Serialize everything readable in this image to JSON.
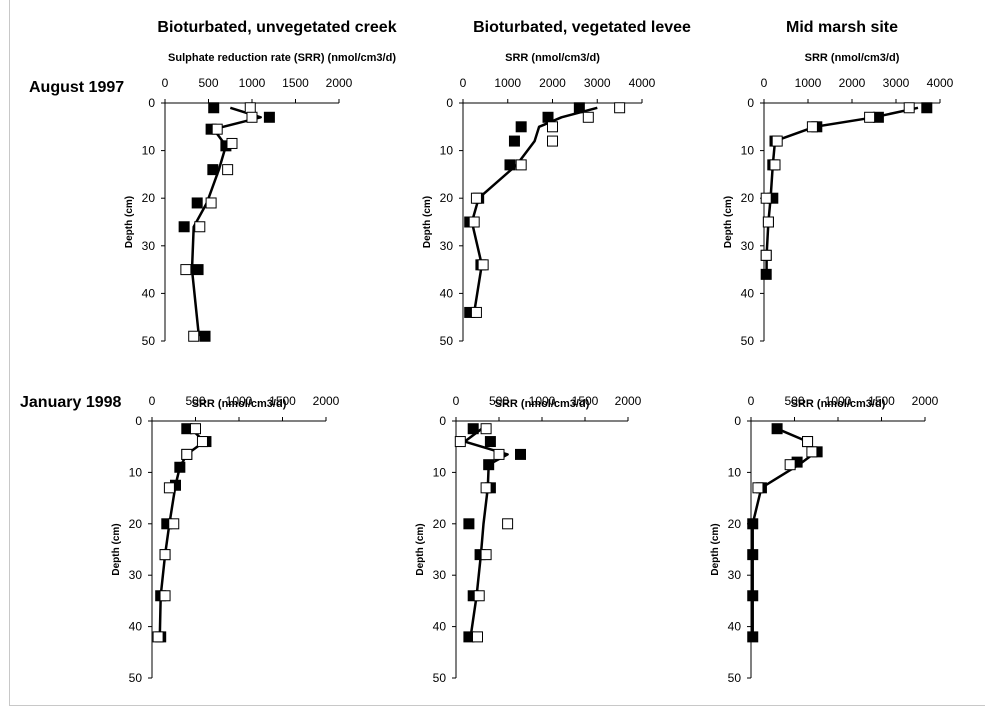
{
  "columns": [
    "Bioturbated, unvegetated creek",
    "Bioturbated, vegetated levee",
    "Mid marsh site"
  ],
  "rows": [
    "August 1997",
    "January 1998"
  ],
  "chart_data": [
    {
      "type": "scatter",
      "xlabel": "Sulphate reduction rate (SRR) (nmol/cm3/d)",
      "ylabel": "Depth (cm)",
      "xlim": [
        0,
        2000
      ],
      "ylim": [
        50,
        0
      ],
      "xticks": [
        0,
        500,
        1000,
        1500,
        2000
      ],
      "yticks": [
        0,
        10,
        20,
        30,
        40,
        50
      ],
      "series": [
        {
          "marker": "filled-square",
          "points": [
            [
              560,
              1
            ],
            [
              1200,
              3
            ],
            [
              530,
              5.5
            ],
            [
              700,
              9
            ],
            [
              550,
              14
            ],
            [
              370,
              21
            ],
            [
              220,
              26
            ],
            [
              380,
              35
            ],
            [
              460,
              49
            ]
          ]
        },
        {
          "marker": "open-square",
          "points": [
            [
              980,
              1
            ],
            [
              1000,
              3
            ],
            [
              600,
              5.5
            ],
            [
              770,
              8.5
            ],
            [
              720,
              14
            ],
            [
              530,
              21
            ],
            [
              400,
              26
            ],
            [
              240,
              35
            ],
            [
              330,
              49
            ]
          ]
        },
        {
          "marker": "line",
          "points": [
            [
              750,
              1
            ],
            [
              1100,
              3
            ],
            [
              560,
              5.5
            ],
            [
              700,
              9
            ],
            [
              620,
              14
            ],
            [
              480,
              21
            ],
            [
              330,
              26
            ],
            [
              310,
              35
            ],
            [
              390,
              49
            ]
          ]
        }
      ]
    },
    {
      "type": "scatter",
      "xlabel": "SRR (nmol/cm3/d)",
      "ylabel": "Depth (cm)",
      "xlim": [
        0,
        4000
      ],
      "ylim": [
        50,
        0
      ],
      "xticks": [
        0,
        1000,
        2000,
        3000,
        4000
      ],
      "yticks": [
        0,
        10,
        20,
        30,
        40,
        50
      ],
      "series": [
        {
          "marker": "filled-square",
          "points": [
            [
              2600,
              1
            ],
            [
              1900,
              3
            ],
            [
              1300,
              5
            ],
            [
              1150,
              8
            ],
            [
              1050,
              13
            ],
            [
              350,
              20
            ],
            [
              150,
              25
            ],
            [
              400,
              34
            ],
            [
              150,
              44
            ]
          ]
        },
        {
          "marker": "open-square",
          "points": [
            [
              3500,
              1
            ],
            [
              2800,
              3
            ],
            [
              2000,
              5
            ],
            [
              2000,
              8
            ],
            [
              1300,
              13
            ],
            [
              300,
              20
            ],
            [
              250,
              25
            ],
            [
              450,
              34
            ],
            [
              300,
              44
            ]
          ]
        },
        {
          "marker": "line",
          "points": [
            [
              3000,
              1
            ],
            [
              2200,
              3
            ],
            [
              1700,
              5
            ],
            [
              1600,
              8
            ],
            [
              1200,
              13
            ],
            [
              350,
              20
            ],
            [
              200,
              25
            ],
            [
              420,
              34
            ],
            [
              250,
              44
            ]
          ]
        }
      ]
    },
    {
      "type": "scatter",
      "xlabel": "SRR (nmol/cm3/d)",
      "ylabel": "Depth (cm)",
      "xlim": [
        0,
        4000
      ],
      "ylim": [
        50,
        0
      ],
      "xticks": [
        0,
        1000,
        2000,
        3000,
        4000
      ],
      "yticks": [
        0,
        10,
        20,
        30,
        40,
        50
      ],
      "series": [
        {
          "marker": "filled-square",
          "points": [
            [
              3700,
              1
            ],
            [
              2600,
              3
            ],
            [
              1200,
              5
            ],
            [
              250,
              8
            ],
            [
              200,
              13
            ],
            [
              200,
              20
            ],
            [
              100,
              25
            ],
            [
              50,
              32
            ],
            [
              50,
              36
            ]
          ]
        },
        {
          "marker": "open-square",
          "points": [
            [
              3300,
              1
            ],
            [
              2400,
              3
            ],
            [
              1100,
              5
            ],
            [
              300,
              8
            ],
            [
              250,
              13
            ],
            [
              50,
              20
            ],
            [
              100,
              25
            ],
            [
              50,
              32
            ]
          ]
        },
        {
          "marker": "line",
          "points": [
            [
              3500,
              1
            ],
            [
              2500,
              3
            ],
            [
              1150,
              5
            ],
            [
              250,
              8
            ],
            [
              200,
              13
            ],
            [
              150,
              20
            ],
            [
              100,
              25
            ],
            [
              60,
              32
            ],
            [
              60,
              36
            ]
          ]
        }
      ]
    },
    {
      "type": "scatter",
      "xlabel": "SRR (nmol/cm3/d)",
      "ylabel": "Depth (cm)",
      "xlim": [
        0,
        2000
      ],
      "ylim": [
        50,
        0
      ],
      "xticks": [
        0,
        500,
        1000,
        1500,
        2000
      ],
      "yticks": [
        0,
        10,
        20,
        30,
        40,
        50
      ],
      "series": [
        {
          "marker": "filled-square",
          "points": [
            [
              400,
              1.5
            ],
            [
              620,
              4
            ],
            [
              400,
              6.5
            ],
            [
              320,
              9
            ],
            [
              270,
              12.5
            ],
            [
              170,
              20
            ],
            [
              150,
              26
            ],
            [
              100,
              34
            ],
            [
              100,
              42
            ]
          ]
        },
        {
          "marker": "open-square",
          "points": [
            [
              500,
              1.5
            ],
            [
              580,
              4
            ],
            [
              400,
              6.5
            ],
            [
              200,
              13
            ],
            [
              250,
              20
            ],
            [
              150,
              26
            ],
            [
              150,
              34
            ],
            [
              70,
              42
            ]
          ]
        },
        {
          "marker": "line",
          "points": [
            [
              450,
              1.5
            ],
            [
              600,
              4
            ],
            [
              400,
              6.5
            ],
            [
              320,
              9
            ],
            [
              270,
              12.5
            ],
            [
              200,
              20
            ],
            [
              150,
              26
            ],
            [
              100,
              34
            ],
            [
              90,
              42
            ]
          ]
        }
      ]
    },
    {
      "type": "scatter",
      "xlabel": "SRR (nmol/cm3/d)",
      "ylabel": "Depth (cm)",
      "xlim": [
        0,
        2000
      ],
      "ylim": [
        50,
        0
      ],
      "xticks": [
        0,
        500,
        1000,
        1500,
        2000
      ],
      "yticks": [
        0,
        10,
        20,
        30,
        40,
        50
      ],
      "series": [
        {
          "marker": "filled-square",
          "points": [
            [
              200,
              1.5
            ],
            [
              400,
              4
            ],
            [
              750,
              6.5
            ],
            [
              380,
              8.5
            ],
            [
              400,
              13
            ],
            [
              150,
              20
            ],
            [
              280,
              26
            ],
            [
              200,
              34
            ],
            [
              150,
              42
            ]
          ]
        },
        {
          "marker": "open-square",
          "points": [
            [
              350,
              1.5
            ],
            [
              50,
              4
            ],
            [
              500,
              6.5
            ],
            [
              350,
              13
            ],
            [
              600,
              20
            ],
            [
              350,
              26
            ],
            [
              270,
              34
            ],
            [
              250,
              42
            ]
          ]
        },
        {
          "marker": "line",
          "points": [
            [
              300,
              1.5
            ],
            [
              100,
              4
            ],
            [
              600,
              6.5
            ],
            [
              380,
              8.5
            ],
            [
              370,
              13
            ],
            [
              320,
              20
            ],
            [
              290,
              26
            ],
            [
              240,
              34
            ],
            [
              170,
              42
            ]
          ]
        }
      ]
    },
    {
      "type": "scatter",
      "xlabel": "SRR (nmol/cm3/d)",
      "ylabel": "Depth (cm)",
      "xlim": [
        0,
        2000
      ],
      "ylim": [
        50,
        0
      ],
      "xticks": [
        0,
        500,
        1000,
        1500,
        2000
      ],
      "yticks": [
        0,
        10,
        20,
        30,
        40,
        50
      ],
      "series": [
        {
          "marker": "filled-square",
          "points": [
            [
              300,
              1.5
            ],
            [
              650,
              4
            ],
            [
              760,
              6
            ],
            [
              530,
              8
            ],
            [
              120,
              13
            ],
            [
              20,
              20
            ],
            [
              20,
              26
            ],
            [
              20,
              34
            ],
            [
              20,
              42
            ]
          ]
        },
        {
          "marker": "open-square",
          "points": [
            [
              650,
              4
            ],
            [
              700,
              6
            ],
            [
              450,
              8.5
            ],
            [
              80,
              13
            ]
          ]
        },
        {
          "marker": "line",
          "points": [
            [
              300,
              1.5
            ],
            [
              650,
              4
            ],
            [
              750,
              6
            ],
            [
              550,
              8.5
            ],
            [
              120,
              13
            ],
            [
              20,
              20
            ],
            [
              20,
              26
            ],
            [
              20,
              34
            ],
            [
              20,
              42
            ]
          ]
        }
      ]
    }
  ]
}
